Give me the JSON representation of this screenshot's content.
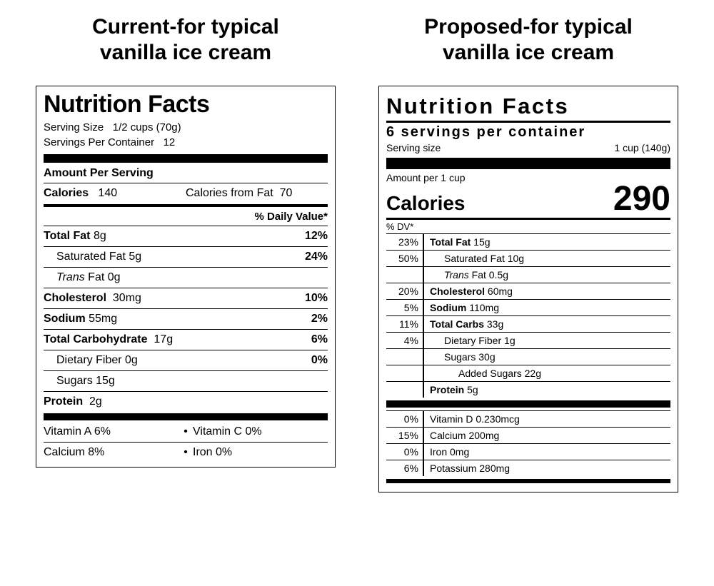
{
  "columns": {
    "left_title_line1": "Current-for typical",
    "left_title_line2": "vanilla ice cream",
    "right_title_line1": "Proposed-for typical",
    "right_title_line2": "vanilla ice cream"
  },
  "current": {
    "heading": "Nutrition Facts",
    "serving_size_label": "Serving Size",
    "serving_size_value": "1/2 cups  (70g)",
    "servings_per_container_label": "Servings Per Container",
    "servings_per_container_value": "12",
    "amount_per_serving": "Amount Per Serving",
    "calories_label": "Calories",
    "calories_value": "140",
    "calories_from_fat_label": "Calories from Fat",
    "calories_from_fat_value": "70",
    "daily_value_header": "% Daily Value*",
    "rows": {
      "total_fat_label": "Total Fat",
      "total_fat_amt": "8g",
      "total_fat_dv": "12%",
      "sat_fat_label": "Saturated Fat",
      "sat_fat_amt": "5g",
      "sat_fat_dv": "24%",
      "trans_fat_label_i": "Trans",
      "trans_fat_label_r": " Fat",
      "trans_fat_amt": "0g",
      "chol_label": "Cholesterol",
      "chol_amt": "30mg",
      "chol_dv": "10%",
      "sodium_label": "Sodium",
      "sodium_amt": "55mg",
      "sodium_dv": "2%",
      "carb_label": "Total Carbohydrate",
      "carb_amt": "17g",
      "carb_dv": "6%",
      "fiber_label": "Dietary Fiber",
      "fiber_amt": "0g",
      "fiber_dv": "0%",
      "sugars_label": "Sugars",
      "sugars_amt": "15g",
      "protein_label": "Protein",
      "protein_amt": "2g"
    },
    "vitamins": {
      "a": "Vitamin A 6%",
      "c": "Vitamin C 0%",
      "calcium": "Calcium 8%",
      "iron": "Iron 0%"
    }
  },
  "proposed": {
    "heading": "Nutrition Facts",
    "servings_per_container": "6 servings per container",
    "serving_size_label": "Serving size",
    "serving_size_value": "1 cup (140g)",
    "amount_per": "Amount per 1 cup",
    "calories_label": "Calories",
    "calories_value": "290",
    "dv_header": "% DV*",
    "rows": [
      {
        "dv": "23%",
        "label": "Total Fat",
        "amt": "15g",
        "bold": true,
        "indent": 0
      },
      {
        "dv": "50%",
        "label": "Saturated Fat",
        "amt": "10g",
        "bold": false,
        "indent": 1
      },
      {
        "dv": "",
        "label": "Trans",
        "label_suffix": " Fat",
        "amt": "0.5g",
        "italic_label": true,
        "indent": 1
      },
      {
        "dv": "20%",
        "label": "Cholesterol",
        "amt": "60mg",
        "bold": true,
        "indent": 0
      },
      {
        "dv": "5%",
        "label": "Sodium",
        "amt": "110mg",
        "bold": true,
        "indent": 0
      },
      {
        "dv": "11%",
        "label": "Total Carbs",
        "amt": "33g",
        "bold": true,
        "indent": 0
      },
      {
        "dv": "4%",
        "label": "Dietary Fiber",
        "amt": "1g",
        "bold": false,
        "indent": 1
      },
      {
        "dv": "",
        "label": "Sugars",
        "amt": "30g",
        "bold": false,
        "indent": 1
      },
      {
        "dv": "",
        "label": "Added Sugars",
        "amt": "22g",
        "bold": false,
        "indent": 2
      },
      {
        "dv": "",
        "label": "Protein",
        "amt": "5g",
        "bold": true,
        "indent": 0
      }
    ],
    "vitamins": [
      {
        "dv": "0%",
        "text": "Vitamin D 0.230mcg"
      },
      {
        "dv": "15%",
        "text": "Calcium 200mg"
      },
      {
        "dv": "0%",
        "text": "Iron 0mg"
      },
      {
        "dv": "6%",
        "text": "Potassium 280mg"
      }
    ]
  },
  "style": {
    "text_color": "#000000",
    "background": "#ffffff",
    "title_fontsize": 30,
    "nutrition_title_fontsize_current": 34,
    "nutrition_title_fontsize_proposed": 31,
    "calories_big_fontsize": 48
  }
}
